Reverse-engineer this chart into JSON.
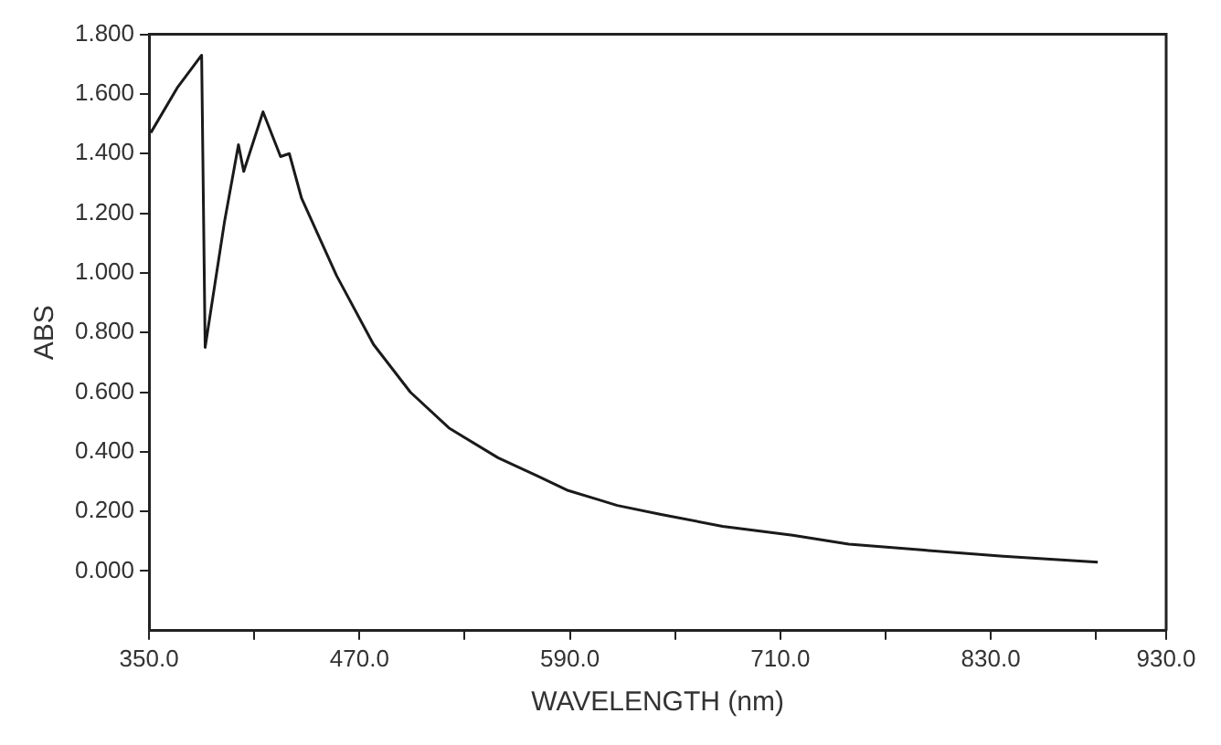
{
  "chart_data": {
    "type": "line",
    "xlabel": "WAVELENGTH (nm)",
    "ylabel": "ABS",
    "x": [
      351,
      366,
      380,
      382,
      393,
      401,
      404,
      415,
      425,
      430,
      437,
      457,
      478,
      499,
      521,
      549,
      571,
      589,
      606,
      617,
      642,
      677,
      717,
      749,
      792,
      837,
      891
    ],
    "series": [
      {
        "color": "#1a1a1a",
        "values": [
          1.47,
          1.62,
          1.73,
          0.75,
          1.17,
          1.43,
          1.34,
          1.54,
          1.39,
          1.4,
          1.25,
          0.99,
          0.76,
          0.6,
          0.48,
          0.38,
          0.32,
          0.27,
          0.24,
          0.22,
          0.19,
          0.15,
          0.12,
          0.09,
          0.07,
          0.05,
          0.03
        ]
      }
    ],
    "xlim": [
      350,
      930
    ],
    "xticks": [
      {
        "value": 350,
        "label": "350.0"
      },
      {
        "value": 410,
        "label": null
      },
      {
        "value": 470,
        "label": "470.0"
      },
      {
        "value": 530,
        "label": null
      },
      {
        "value": 590,
        "label": "590.0"
      },
      {
        "value": 650,
        "label": null
      },
      {
        "value": 710,
        "label": "710.0"
      },
      {
        "value": 770,
        "label": null
      },
      {
        "value": 830,
        "label": "830.0"
      },
      {
        "value": 890,
        "label": null
      },
      {
        "value": 930,
        "label": "930.0"
      }
    ],
    "ylim": [
      -0.2,
      1.8
    ],
    "yticks": [
      {
        "value": 0,
        "label": "0.000"
      },
      {
        "value": 0.2,
        "label": "0.200"
      },
      {
        "value": 0.4,
        "label": "0.400"
      },
      {
        "value": 0.6,
        "label": "0.600"
      },
      {
        "value": 0.8,
        "label": "0.800"
      },
      {
        "value": 1.0,
        "label": "1.000"
      },
      {
        "value": 1.2,
        "label": "1.200"
      },
      {
        "value": 1.4,
        "label": "1.400"
      },
      {
        "value": 1.6,
        "label": "1.600"
      },
      {
        "value": 1.8,
        "label": "1.800"
      }
    ],
    "grid": false,
    "legend": false,
    "marker": "none",
    "line_style": "solid"
  }
}
